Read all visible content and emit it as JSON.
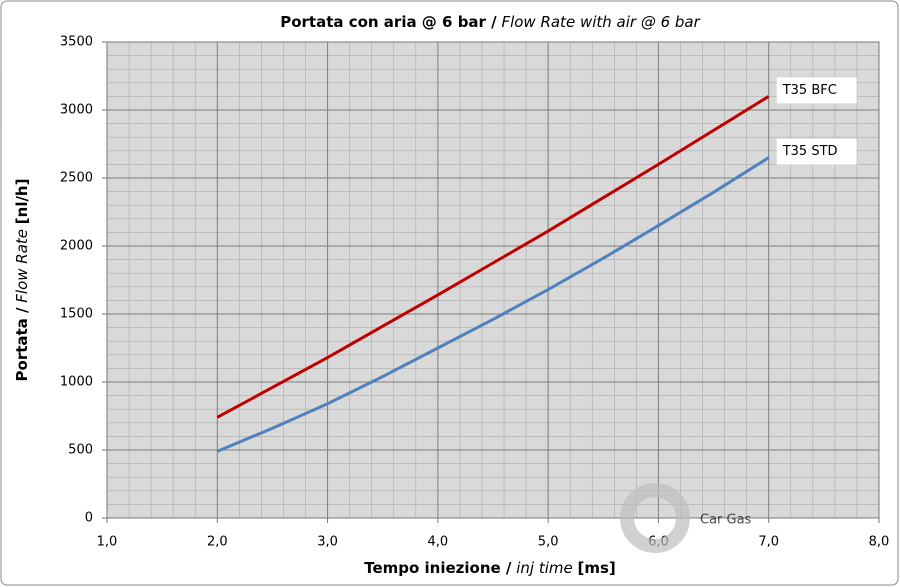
{
  "chart_data": {
    "type": "line",
    "title": [
      "Portata con aria @ 6 bar /",
      "Flow Rate with air @ 6 bar"
    ],
    "x_label": [
      "Tempo iniezione /",
      "inj time",
      "[ms]"
    ],
    "y_label": [
      "Portata /",
      "Flow Rate",
      "[nl/h]"
    ],
    "watermark": "Car Gas",
    "x": [
      2.0,
      2.5,
      3.0,
      3.5,
      4.0,
      4.5,
      5.0,
      5.5,
      6.0,
      6.5,
      7.0
    ],
    "series": [
      {
        "name": "T35 BFC",
        "color": "#c00000",
        "values": [
          740,
          960,
          1180,
          1410,
          1640,
          1875,
          2110,
          2355,
          2600,
          2850,
          3100
        ]
      },
      {
        "name": "T35 STD",
        "color": "#4f81bd",
        "values": [
          490,
          660,
          840,
          1040,
          1250,
          1460,
          1680,
          1910,
          2150,
          2395,
          2650
        ]
      }
    ],
    "xlim": [
      1,
      8
    ],
    "xticks": [
      {
        "value": 1,
        "label": "1,0"
      },
      {
        "value": 2,
        "label": "2,0"
      },
      {
        "value": 3,
        "label": "3,0"
      },
      {
        "value": 4,
        "label": "4,0"
      },
      {
        "value": 5,
        "label": "5,0"
      },
      {
        "value": 6,
        "label": "6,0"
      },
      {
        "value": 7,
        "label": "7,0"
      },
      {
        "value": 8,
        "label": "8,0"
      }
    ],
    "ylim": [
      0,
      3500
    ],
    "yticks": [
      0,
      500,
      1000,
      1500,
      2000,
      2500,
      3000,
      3500
    ],
    "grid": true,
    "minor_grid": {
      "x": 0.2,
      "y": 100
    }
  }
}
